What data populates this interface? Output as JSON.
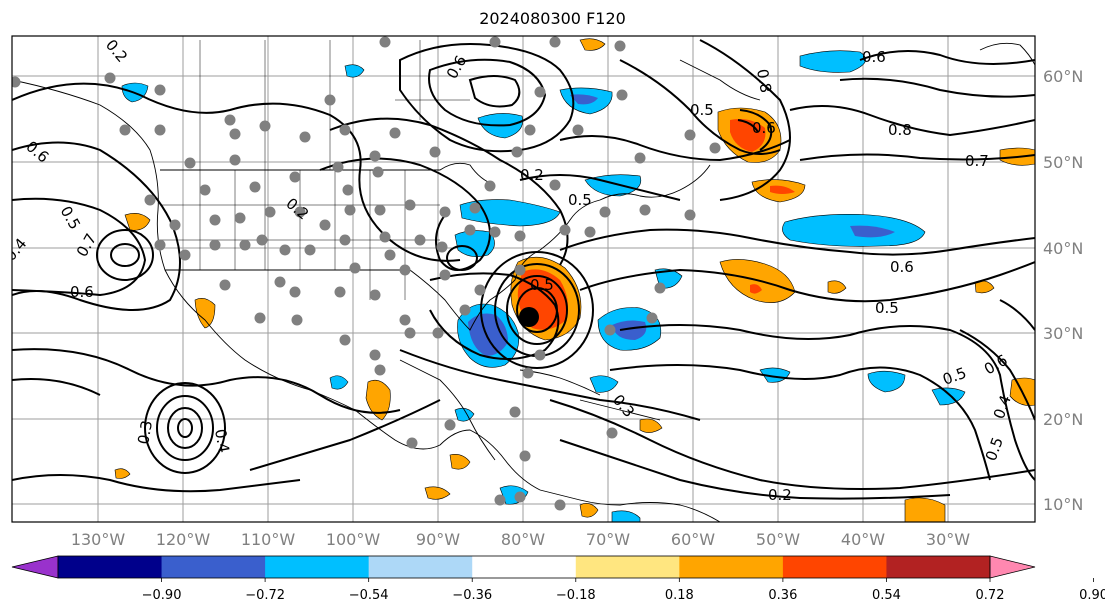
{
  "title": "2024080300 F120",
  "map": {
    "latitude_labels": [
      "60°N",
      "50°N",
      "40°N",
      "30°N",
      "20°N",
      "10°N"
    ],
    "longitude_labels": [
      "130°W",
      "120°W",
      "110°W",
      "100°W",
      "90°W",
      "80°W",
      "70°W",
      "60°W",
      "50°W",
      "40°W",
      "30°W"
    ],
    "contour_labels": [
      "0.6",
      "0.5",
      "0.5",
      "0.6",
      "0.8",
      "0.7",
      "0.2",
      "0.6",
      "0.5",
      "0.6",
      "0.5",
      "0.4",
      "0.3",
      "0.4",
      "0.2",
      "0.7",
      "0.6",
      "0.5",
      "0.4",
      "0.3",
      "0.5",
      "0.2",
      "0.6",
      "0.2",
      "0.5",
      "0.8",
      "0.6"
    ],
    "gridline_color": "#9e9e9e",
    "station_marker_color": "#808080",
    "storm_marker_color": "#000000"
  },
  "colorbar": {
    "ticks": [
      "−0.90",
      "−0.72",
      "−0.54",
      "−0.36",
      "−0.18",
      "0.18",
      "0.36",
      "0.54",
      "0.72",
      "0.90"
    ],
    "colors": [
      "#9932cc",
      "#00008b",
      "#3a5fcd",
      "#00bfff",
      "#add8f7",
      "#ffffff",
      "#ffe680",
      "#ffa500",
      "#ff4500",
      "#b22222",
      "#ff88b0"
    ]
  }
}
